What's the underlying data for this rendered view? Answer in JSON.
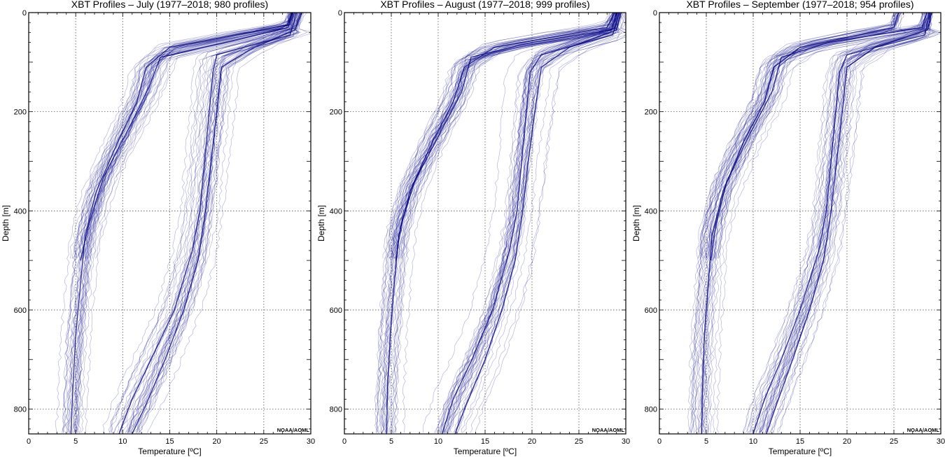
{
  "chart_data": [
    {
      "type": "line",
      "title": "XBT Profiles – July (1977–2018;  980 profiles)",
      "xlabel": "Temperature [ºC]",
      "ylabel": "Depth [m]",
      "xlim": [
        0,
        30
      ],
      "ylim": [
        850,
        0
      ],
      "xticks": [
        0,
        5,
        10,
        15,
        20,
        25,
        30
      ],
      "yticks": [
        0,
        200,
        400,
        600,
        800
      ],
      "x_tick_labels": [
        "0",
        "5",
        "10",
        "15",
        "20",
        "25",
        "30"
      ],
      "y_tick_labels": [
        "0",
        "200",
        "400",
        "600",
        "800"
      ],
      "grid": true,
      "credit": "NOAA/AOML",
      "profile_count": 980,
      "series": [
        {
          "x": [
            28.0,
            27.6,
            22.0,
            14.0,
            12.8,
            11.0,
            8.0,
            6.5,
            5.5
          ],
          "y": [
            0,
            30,
            55,
            90,
            150,
            220,
            330,
            420,
            500
          ]
        },
        {
          "x": [
            28.5,
            27.8,
            20.0,
            19.6,
            19.2,
            18.7,
            18.2,
            17.4,
            15.5,
            13.0,
            11.0,
            9.6
          ],
          "y": [
            0,
            45,
            85,
            120,
            200,
            300,
            400,
            480,
            600,
            700,
            780,
            850
          ]
        },
        {
          "x": [
            29.0,
            28.3,
            24.0,
            20.5,
            20.0,
            19.4,
            18.8,
            18.0,
            16.5,
            14.5,
            12.5,
            11.0
          ],
          "y": [
            0,
            35,
            70,
            110,
            200,
            300,
            400,
            500,
            600,
            700,
            790,
            850
          ]
        },
        {
          "x": [
            28.0,
            27.5,
            15.0,
            12.5,
            11.5,
            9.5,
            7.2,
            6.0,
            5.5,
            5.0,
            4.7,
            4.5
          ],
          "y": [
            0,
            25,
            70,
            110,
            180,
            260,
            360,
            450,
            550,
            650,
            760,
            850
          ]
        }
      ]
    },
    {
      "type": "line",
      "title": "XBT Profiles – August (1977–2018;  999 profiles)",
      "xlabel": "Temperature [ºC]",
      "ylabel": "Depth [m]",
      "xlim": [
        0,
        30
      ],
      "ylim": [
        850,
        0
      ],
      "xticks": [
        0,
        5,
        10,
        15,
        20,
        25,
        30
      ],
      "yticks": [
        0,
        200,
        400,
        600,
        800
      ],
      "x_tick_labels": [
        "0",
        "5",
        "10",
        "15",
        "20",
        "25",
        "30"
      ],
      "y_tick_labels": [
        "0",
        "200",
        "400",
        "600",
        "800"
      ],
      "grid": true,
      "credit": "NOAA/AOML",
      "profile_count": 999,
      "series": [
        {
          "x": [
            29.0,
            28.5,
            20.0,
            13.5,
            12.5,
            10.0,
            7.5,
            6.0,
            5.5
          ],
          "y": [
            0,
            35,
            60,
            90,
            160,
            250,
            340,
            430,
            500
          ]
        },
        {
          "x": [
            29.3,
            28.6,
            21.0,
            19.8,
            19.4,
            18.9,
            18.4,
            17.6,
            15.8,
            13.6,
            11.6,
            10.4
          ],
          "y": [
            0,
            45,
            85,
            120,
            200,
            300,
            400,
            480,
            600,
            700,
            780,
            850
          ]
        },
        {
          "x": [
            29.5,
            29.0,
            24.0,
            21.0,
            20.3,
            19.6,
            19.0,
            18.2,
            16.8,
            15.0,
            13.0,
            11.8
          ],
          "y": [
            0,
            35,
            70,
            110,
            200,
            300,
            400,
            500,
            600,
            700,
            790,
            850
          ]
        },
        {
          "x": [
            28.8,
            28.0,
            16.0,
            12.8,
            11.6,
            9.4,
            7.0,
            5.8,
            5.3,
            4.9,
            4.6,
            4.5
          ],
          "y": [
            0,
            30,
            70,
            110,
            180,
            260,
            360,
            450,
            550,
            650,
            760,
            850
          ]
        }
      ]
    },
    {
      "type": "line",
      "title": "XBT Profiles – September (1977–2018;  954 profiles)",
      "xlabel": "Temperature [ºC]",
      "ylabel": "Depth [m]",
      "xlim": [
        0,
        30
      ],
      "ylim": [
        850,
        0
      ],
      "xticks": [
        0,
        5,
        10,
        15,
        20,
        25,
        30
      ],
      "yticks": [
        0,
        200,
        400,
        600,
        800
      ],
      "x_tick_labels": [
        "0",
        "5",
        "10",
        "15",
        "20",
        "25",
        "30"
      ],
      "y_tick_labels": [
        "0",
        "200",
        "400",
        "600",
        "800"
      ],
      "grid": true,
      "credit": "NOAA/AOML",
      "profile_count": 954,
      "series": [
        {
          "x": [
            28.5,
            28.0,
            18.0,
            13.0,
            12.0,
            9.5,
            7.2,
            6.0,
            5.5
          ],
          "y": [
            0,
            30,
            60,
            90,
            160,
            250,
            340,
            430,
            500
          ]
        },
        {
          "x": [
            28.8,
            28.3,
            20.0,
            19.2,
            18.8,
            18.3,
            17.8,
            17.0,
            15.0,
            13.0,
            11.2,
            10.0
          ],
          "y": [
            0,
            45,
            85,
            120,
            200,
            300,
            400,
            480,
            600,
            700,
            780,
            850
          ]
        },
        {
          "x": [
            29.0,
            28.6,
            23.0,
            20.0,
            19.5,
            18.9,
            18.3,
            17.5,
            16.0,
            14.2,
            12.5,
            11.4
          ],
          "y": [
            0,
            35,
            70,
            110,
            200,
            300,
            400,
            500,
            600,
            700,
            790,
            850
          ]
        },
        {
          "x": [
            25.5,
            25.0,
            15.0,
            12.2,
            11.2,
            9.0,
            6.8,
            5.6,
            5.2,
            4.8,
            4.6,
            4.5
          ],
          "y": [
            0,
            30,
            70,
            110,
            180,
            260,
            360,
            450,
            550,
            650,
            760,
            850
          ]
        }
      ]
    }
  ]
}
